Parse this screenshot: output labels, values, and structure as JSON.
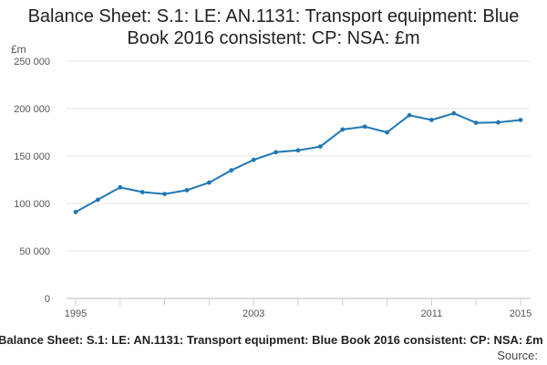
{
  "chart_data": {
    "type": "line",
    "title": "Balance Sheet: S.1: LE: AN.1131: Transport equipment: Blue Book 2016 consistent: CP: NSA: £m",
    "ylabel": "£m",
    "xlabel": "",
    "ylim": [
      0,
      250000
    ],
    "xlim": [
      1995,
      2015
    ],
    "yticks": [
      0,
      50000,
      100000,
      150000,
      200000,
      250000
    ],
    "ytick_labels": [
      "0",
      "50 000",
      "100 000",
      "150 000",
      "200 000",
      "250 000"
    ],
    "xticks": [
      1995,
      2003,
      2011,
      2015
    ],
    "xtick_labels": [
      "1995",
      "2003",
      "2011",
      "2015"
    ],
    "grid": true,
    "legend": "none",
    "line_color": "#1f77b4",
    "series": [
      {
        "x": [
          1995,
          1996,
          1997,
          1998,
          1999,
          2000,
          2001,
          2002,
          2003,
          2004,
          2005,
          2006,
          2007,
          2008,
          2009,
          2010,
          2011,
          2012,
          2013,
          2014,
          2015
        ],
        "values": [
          91000,
          104000,
          117000,
          112000,
          110000,
          114000,
          122000,
          135000,
          146000,
          154000,
          156000,
          160000,
          178000,
          181000,
          175000,
          193000,
          188000,
          195000,
          185000,
          185500,
          188000
        ]
      }
    ]
  },
  "footer": {
    "caption": "Balance Sheet: S.1: LE: AN.1131: Transport equipment: Blue Book 2016 consistent: CP: NSA: £m",
    "source": "Source:"
  }
}
